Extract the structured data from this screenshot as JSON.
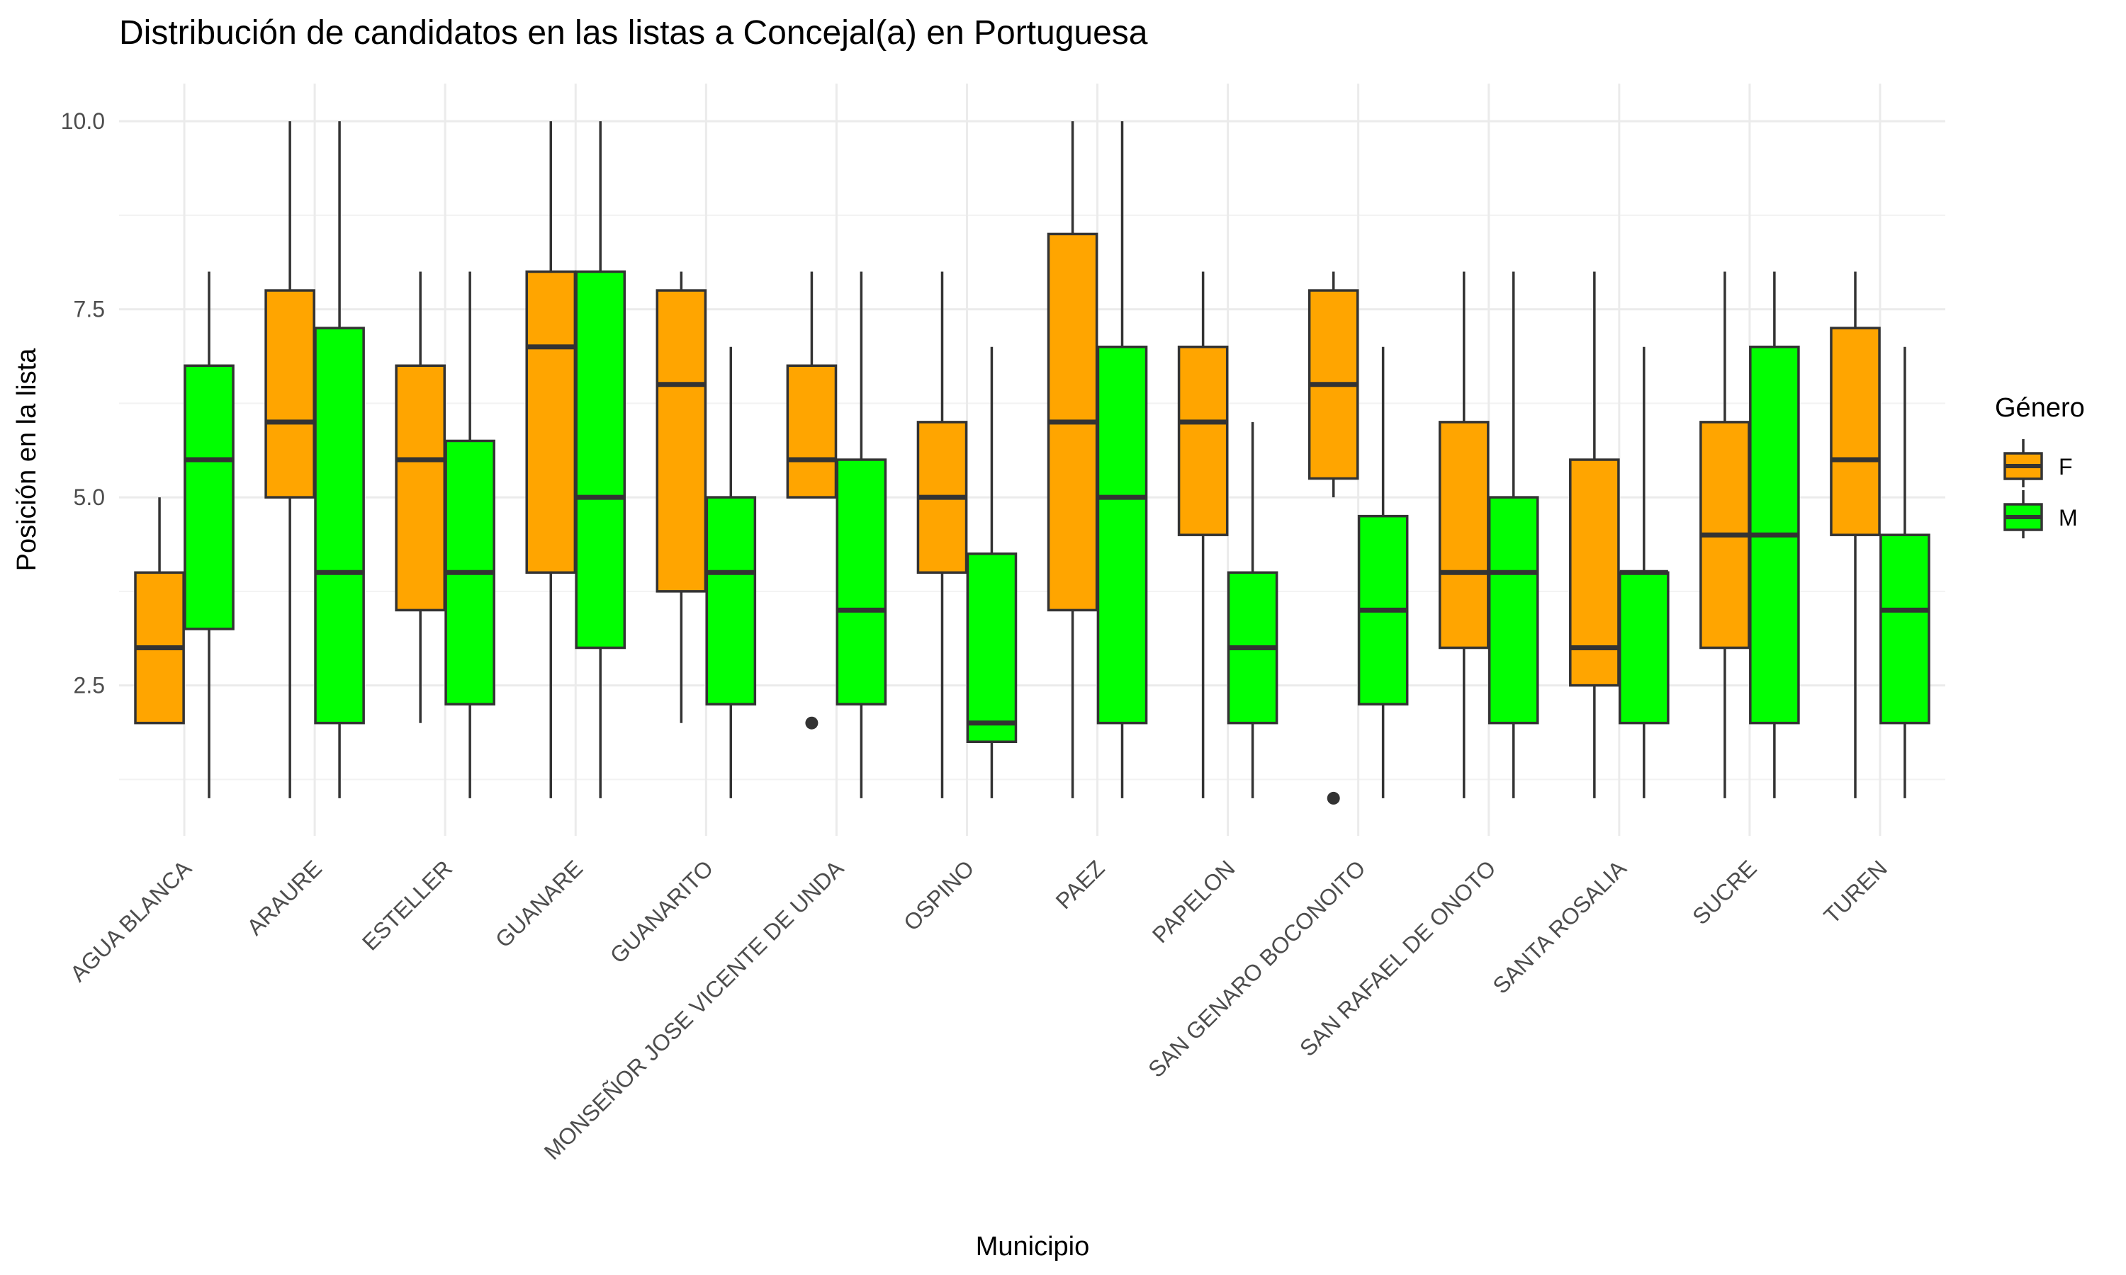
{
  "chart_data": {
    "type": "boxplot",
    "title": "Distribución de candidatos en las listas a Concejal(a) en Portuguesa",
    "xlabel": "Municipio",
    "ylabel": "Posición en la lista",
    "ylim": [
      0.5,
      10.5
    ],
    "yticks": [
      2.5,
      5.0,
      7.5,
      10.0
    ],
    "ytick_labels": [
      "2.5",
      "5.0",
      "7.5",
      "10.0"
    ],
    "grid": true,
    "legend": {
      "title": "Género",
      "position": "right"
    },
    "categories": [
      "AGUA BLANCA",
      "ARAURE",
      "ESTELLER",
      "GUANARE",
      "GUANARITO",
      "MONSEÑOR JOSE VICENTE DE UNDA",
      "OSPINO",
      "PAEZ",
      "PAPELON",
      "SAN GENARO BOCONOITO",
      "SAN RAFAEL DE ONOTO",
      "SANTA ROSALIA",
      "SUCRE",
      "TUREN"
    ],
    "series": [
      {
        "name": "F",
        "color": "#FFA500",
        "boxes": [
          {
            "min": 2,
            "q1": 2,
            "median": 3,
            "q3": 4,
            "max": 5,
            "outliers": []
          },
          {
            "min": 1,
            "q1": 5,
            "median": 6,
            "q3": 7.75,
            "max": 10,
            "outliers": []
          },
          {
            "min": 2,
            "q1": 3.5,
            "median": 5.5,
            "q3": 6.75,
            "max": 8,
            "outliers": []
          },
          {
            "min": 1,
            "q1": 4,
            "median": 7,
            "q3": 8,
            "max": 10,
            "outliers": []
          },
          {
            "min": 2,
            "q1": 3.75,
            "median": 6.5,
            "q3": 7.75,
            "max": 8,
            "outliers": []
          },
          {
            "min": 5,
            "q1": 5,
            "median": 5.5,
            "q3": 6.75,
            "max": 8,
            "outliers": [
              2
            ]
          },
          {
            "min": 1,
            "q1": 4,
            "median": 5,
            "q3": 6,
            "max": 8,
            "outliers": []
          },
          {
            "min": 1,
            "q1": 3.5,
            "median": 6,
            "q3": 8.5,
            "max": 10,
            "outliers": []
          },
          {
            "min": 1,
            "q1": 4.5,
            "median": 6,
            "q3": 7,
            "max": 8,
            "outliers": []
          },
          {
            "min": 5,
            "q1": 5.25,
            "median": 6.5,
            "q3": 7.75,
            "max": 8,
            "outliers": [
              1
            ]
          },
          {
            "min": 1,
            "q1": 3,
            "median": 4,
            "q3": 6,
            "max": 8,
            "outliers": []
          },
          {
            "min": 1,
            "q1": 2.5,
            "median": 3,
            "q3": 5.5,
            "max": 8,
            "outliers": []
          },
          {
            "min": 1,
            "q1": 3,
            "median": 4.5,
            "q3": 6,
            "max": 8,
            "outliers": []
          },
          {
            "min": 1,
            "q1": 4.5,
            "median": 5.5,
            "q3": 7.25,
            "max": 8,
            "outliers": []
          }
        ]
      },
      {
        "name": "M",
        "color": "#00FF00",
        "boxes": [
          {
            "min": 1,
            "q1": 3.25,
            "median": 5.5,
            "q3": 6.75,
            "max": 8,
            "outliers": []
          },
          {
            "min": 1,
            "q1": 2,
            "median": 4,
            "q3": 7.25,
            "max": 10,
            "outliers": []
          },
          {
            "min": 1,
            "q1": 2.25,
            "median": 4,
            "q3": 5.75,
            "max": 8,
            "outliers": []
          },
          {
            "min": 1,
            "q1": 3,
            "median": 5,
            "q3": 8,
            "max": 10,
            "outliers": []
          },
          {
            "min": 1,
            "q1": 2.25,
            "median": 4,
            "q3": 5,
            "max": 7,
            "outliers": []
          },
          {
            "min": 1,
            "q1": 2.25,
            "median": 3.5,
            "q3": 5.5,
            "max": 8,
            "outliers": []
          },
          {
            "min": 1,
            "q1": 1.75,
            "median": 2,
            "q3": 4.25,
            "max": 7,
            "outliers": []
          },
          {
            "min": 1,
            "q1": 2,
            "median": 5,
            "q3": 7,
            "max": 10,
            "outliers": []
          },
          {
            "min": 1,
            "q1": 2,
            "median": 3,
            "q3": 4,
            "max": 6,
            "outliers": []
          },
          {
            "min": 1,
            "q1": 2.25,
            "median": 3.5,
            "q3": 4.75,
            "max": 7,
            "outliers": []
          },
          {
            "min": 1,
            "q1": 2,
            "median": 4,
            "q3": 5,
            "max": 8,
            "outliers": []
          },
          {
            "min": 1,
            "q1": 2,
            "median": 4,
            "q3": 4,
            "max": 7,
            "outliers": []
          },
          {
            "min": 1,
            "q1": 2,
            "median": 4.5,
            "q3": 7,
            "max": 8,
            "outliers": []
          },
          {
            "min": 1,
            "q1": 2,
            "median": 3.5,
            "q3": 4.5,
            "max": 7,
            "outliers": []
          }
        ]
      }
    ]
  }
}
